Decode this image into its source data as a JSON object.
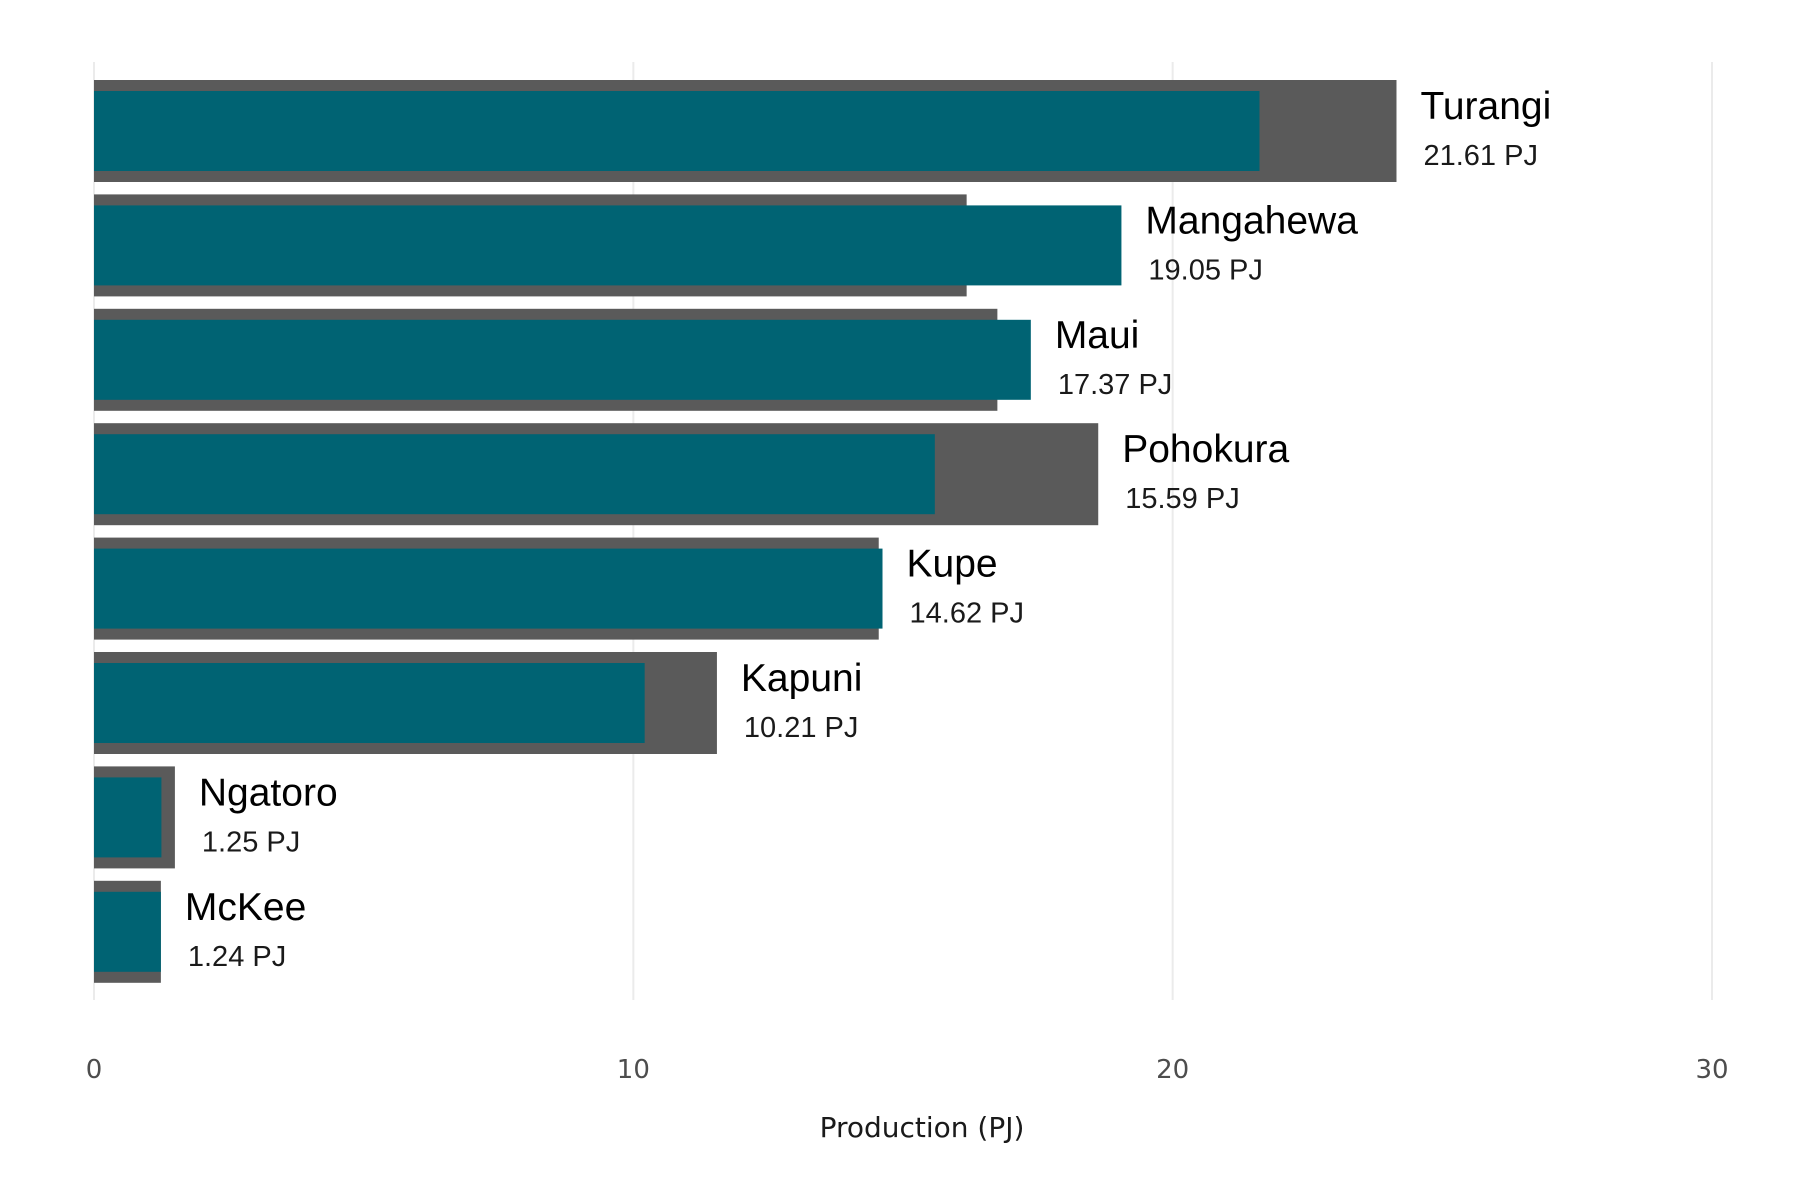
{
  "chart_data": {
    "type": "bar",
    "orientation": "horizontal",
    "xlabel": "Production (PJ)",
    "xlim": [
      0,
      30
    ],
    "xticks": [
      0,
      10,
      20,
      30
    ],
    "grid": true,
    "legend": "none",
    "categories": [
      "Turangi",
      "Mangahewa",
      "Maui",
      "Pohokura",
      "Kupe",
      "Kapuni",
      "Ngatoro",
      "McKee"
    ],
    "value_labels": [
      "21.61 PJ",
      "19.05 PJ",
      "17.37 PJ",
      "15.59 PJ",
      "14.62 PJ",
      "10.21 PJ",
      "1.25 PJ",
      "1.24 PJ"
    ],
    "series": [
      {
        "values": [
          24.15,
          16.18,
          16.75,
          18.62,
          14.55,
          11.55,
          1.5,
          1.24
        ]
      },
      {
        "values": [
          21.61,
          19.05,
          17.37,
          15.59,
          14.62,
          10.21,
          1.25,
          1.24
        ]
      }
    ],
    "colors": {
      "back": "#5a5a5a",
      "front": "#006373"
    }
  }
}
